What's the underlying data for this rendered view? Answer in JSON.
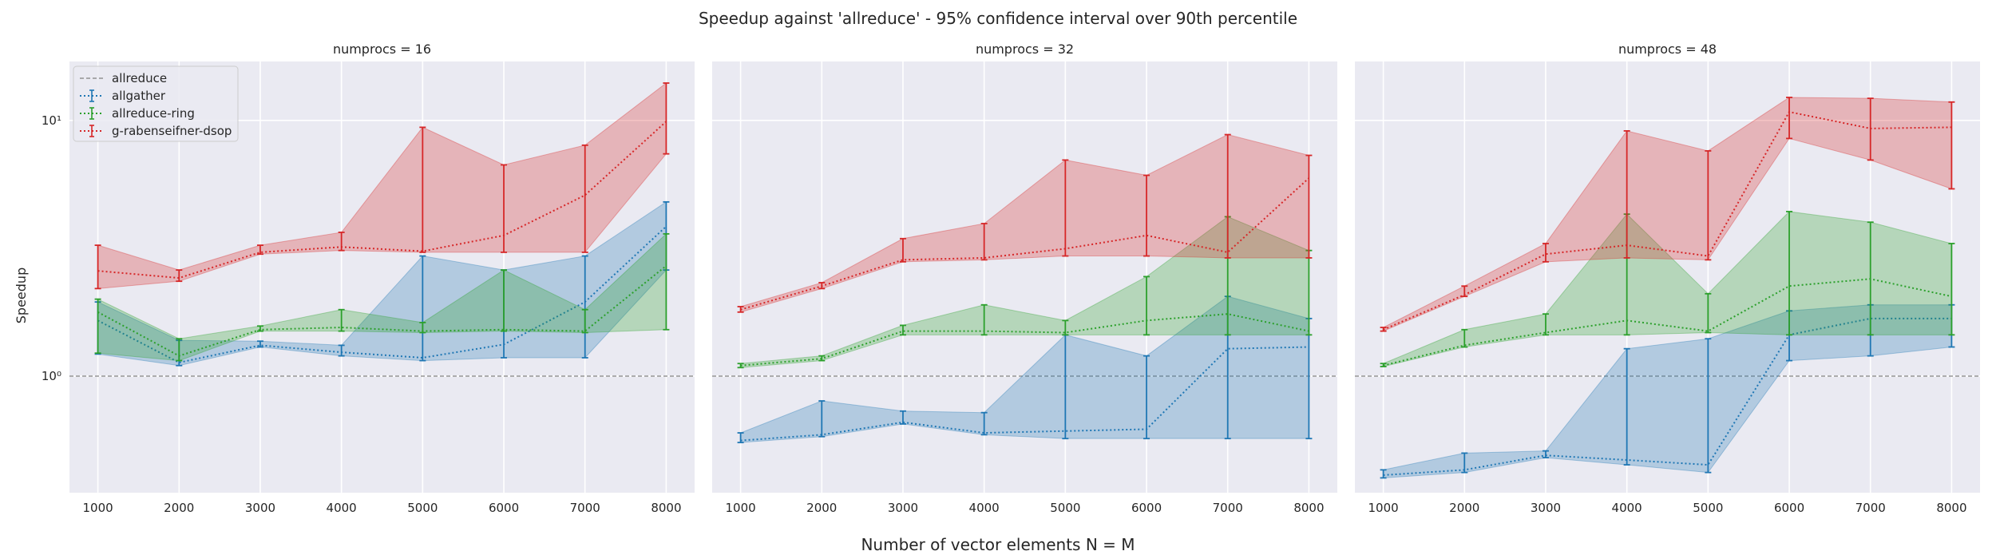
{
  "suptitle": "Speedup against 'allreduce' - 95% confidence interval over 90th percentile",
  "xlabel": "Number of vector elements N = M",
  "ylabel": "Speedup",
  "chart_data": {
    "type": "line",
    "yscale": "log",
    "ylim": [
      0.35,
      17
    ],
    "xlim": [
      650,
      8350
    ],
    "x": [
      1000,
      2000,
      3000,
      4000,
      5000,
      6000,
      7000,
      8000
    ],
    "x_tick_labels": [
      "1000",
      "2000",
      "3000",
      "4000",
      "5000",
      "6000",
      "7000",
      "8000"
    ],
    "y_tick_labels": [
      "10⁰",
      "10¹"
    ],
    "baseline": {
      "name": "allreduce",
      "value": 1.0
    },
    "legend": [
      "allreduce",
      "allgather",
      "allreduce-ring",
      "g-rabenseifner-dsop"
    ],
    "legend_position": "upper left",
    "grid": true,
    "colors": {
      "background": "#eaeaf2",
      "allreduce": "#808080",
      "allgather": "#1f77b4",
      "allreduce-ring": "#2ca02c",
      "g-rabenseifner-dsop": "#d62728"
    },
    "panels": [
      {
        "title": "numprocs = 16",
        "series": [
          {
            "name": "allgather",
            "mid": [
              1.65,
              1.13,
              1.32,
              1.24,
              1.18,
              1.33,
              1.95,
              3.85
            ],
            "low": [
              1.22,
              1.1,
              1.3,
              1.2,
              1.15,
              1.18,
              1.18,
              2.6
            ],
            "high": [
              1.95,
              1.38,
              1.37,
              1.32,
              2.95,
              2.6,
              2.95,
              4.8
            ]
          },
          {
            "name": "allreduce-ring",
            "mid": [
              1.78,
              1.2,
              1.52,
              1.55,
              1.5,
              1.52,
              1.5,
              2.7
            ],
            "low": [
              1.23,
              1.15,
              1.5,
              1.5,
              1.48,
              1.5,
              1.48,
              1.52
            ],
            "high": [
              2.0,
              1.4,
              1.57,
              1.82,
              1.62,
              2.6,
              1.82,
              3.6
            ]
          },
          {
            "name": "g-rabenseifner-dsop",
            "mid": [
              2.58,
              2.42,
              3.05,
              3.2,
              3.08,
              3.55,
              5.1,
              9.9
            ],
            "low": [
              2.2,
              2.35,
              3.0,
              3.1,
              3.05,
              3.05,
              3.05,
              7.4
            ],
            "high": [
              3.25,
              2.6,
              3.25,
              3.65,
              9.4,
              6.7,
              8.0,
              14.0
            ]
          }
        ]
      },
      {
        "title": "numprocs = 32",
        "series": [
          {
            "name": "allgather",
            "mid": [
              0.56,
              0.59,
              0.66,
              0.6,
              0.61,
              0.62,
              1.28,
              1.3
            ],
            "low": [
              0.55,
              0.58,
              0.65,
              0.59,
              0.57,
              0.57,
              0.57,
              0.57
            ],
            "high": [
              0.6,
              0.8,
              0.73,
              0.72,
              1.45,
              1.2,
              2.05,
              1.68
            ]
          },
          {
            "name": "allreduce-ring",
            "mid": [
              1.1,
              1.17,
              1.5,
              1.5,
              1.48,
              1.65,
              1.75,
              1.5
            ],
            "low": [
              1.08,
              1.15,
              1.45,
              1.45,
              1.45,
              1.45,
              1.45,
              1.45
            ],
            "high": [
              1.12,
              1.2,
              1.58,
              1.9,
              1.65,
              2.45,
              4.2,
              3.1
            ]
          },
          {
            "name": "g-rabenseifner-dsop",
            "mid": [
              1.82,
              2.25,
              2.85,
              2.9,
              3.15,
              3.55,
              3.05,
              5.95
            ],
            "low": [
              1.78,
              2.2,
              2.8,
              2.85,
              2.95,
              2.95,
              2.9,
              2.9
            ],
            "high": [
              1.87,
              2.32,
              3.45,
              3.95,
              7.0,
              6.1,
              8.8,
              7.3
            ]
          }
        ]
      },
      {
        "title": "numprocs = 48",
        "series": [
          {
            "name": "allgather",
            "mid": [
              0.41,
              0.43,
              0.49,
              0.47,
              0.45,
              1.45,
              1.68,
              1.68
            ],
            "low": [
              0.4,
              0.42,
              0.48,
              0.45,
              0.42,
              1.15,
              1.2,
              1.3
            ],
            "high": [
              0.43,
              0.5,
              0.51,
              1.28,
              1.4,
              1.8,
              1.9,
              1.9
            ]
          },
          {
            "name": "allreduce-ring",
            "mid": [
              1.1,
              1.32,
              1.48,
              1.65,
              1.5,
              2.25,
              2.4,
              2.05
            ],
            "low": [
              1.09,
              1.3,
              1.45,
              1.45,
              1.48,
              1.45,
              1.45,
              1.45
            ],
            "high": [
              1.12,
              1.52,
              1.75,
              4.3,
              2.1,
              4.4,
              4.0,
              3.3
            ]
          },
          {
            "name": "g-rabenseifner-dsop",
            "mid": [
              1.52,
              2.08,
              3.0,
              3.25,
              2.95,
              10.8,
              9.3,
              9.4
            ],
            "low": [
              1.5,
              2.05,
              2.8,
              2.9,
              2.85,
              8.5,
              7.0,
              5.4
            ],
            "high": [
              1.55,
              2.25,
              3.3,
              9.1,
              7.6,
              12.3,
              12.2,
              11.8
            ]
          }
        ]
      }
    ]
  }
}
